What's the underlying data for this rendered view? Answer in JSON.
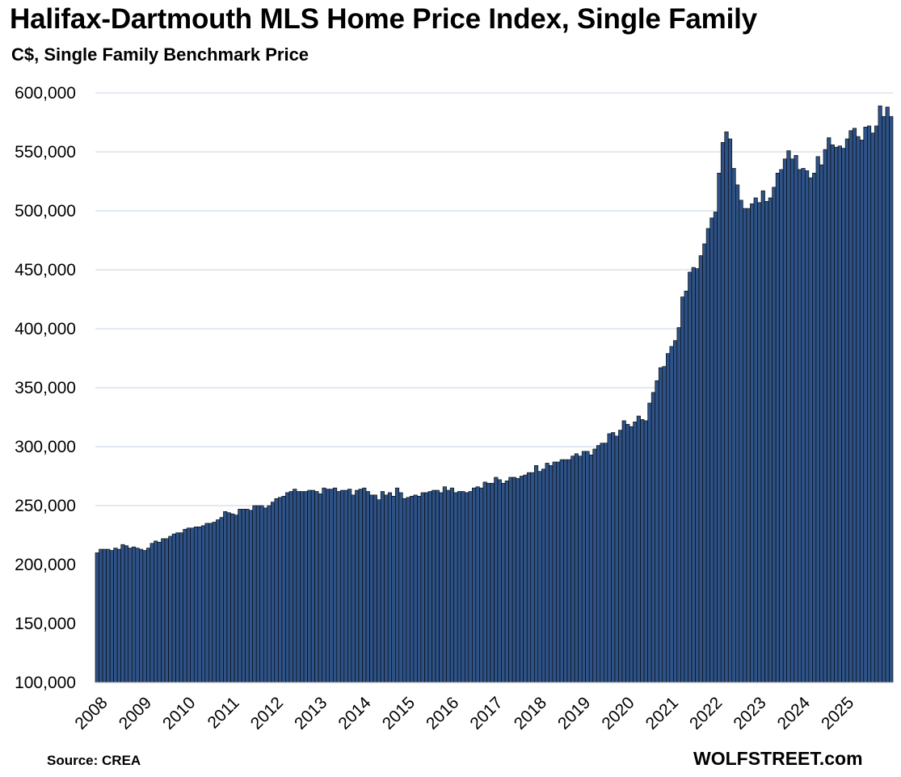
{
  "title": "Halifax-Dartmouth MLS Home Price Index, Single Family",
  "subtitle": "C$, Single Family Benchmark Price",
  "source": "Source: CREA",
  "watermark": "WOLFSTREET.com",
  "colors": {
    "bar_fill": "#2e5286",
    "bar_edge": "#000000",
    "grid": "#c5d3e2"
  },
  "chart_data": {
    "type": "bar",
    "title": "Halifax-Dartmouth MLS Home Price Index, Single Family",
    "subtitle": "C$, Single Family Benchmark Price",
    "xlabel": "",
    "ylabel": "",
    "ylim": [
      100000,
      600000
    ],
    "yticks": [
      100000,
      150000,
      200000,
      250000,
      300000,
      350000,
      400000,
      450000,
      500000,
      550000,
      600000
    ],
    "ytick_labels": [
      "100,000",
      "150,000",
      "200,000",
      "250,000",
      "300,000",
      "350,000",
      "400,000",
      "450,000",
      "500,000",
      "550,000",
      "600,000"
    ],
    "x_labels": [
      "2008",
      "2009",
      "2010",
      "2011",
      "2012",
      "2013",
      "2014",
      "2015",
      "2016",
      "2017",
      "2018",
      "2019",
      "2020",
      "2021",
      "2022",
      "2023",
      "2024",
      "2025"
    ],
    "grid": true,
    "legend": "none",
    "frequency": "monthly",
    "series": [
      {
        "values": [
          210000,
          213000,
          213000,
          213000,
          212000,
          214000,
          213000,
          217000,
          216000,
          214000,
          215000,
          214000,
          213000,
          212000,
          214000,
          218000,
          220000,
          219000,
          222000,
          222000,
          224000,
          226000,
          227000,
          227000,
          230000,
          231000,
          231000,
          232000,
          232000,
          233000,
          235000,
          235000,
          236000,
          238000,
          240000,
          245000,
          244000,
          243000,
          242000,
          247000,
          247000,
          247000,
          246000,
          250000,
          250000,
          250000,
          248000,
          250000,
          253000,
          256000,
          257000,
          258000,
          261000,
          262000,
          264000,
          262000,
          262000,
          262000,
          263000,
          263000,
          262000,
          260000,
          265000,
          264000,
          264000,
          265000,
          262000,
          263000,
          263000,
          264000,
          259000,
          263000,
          264000,
          265000,
          262000,
          259000,
          259000,
          255000,
          262000,
          259000,
          261000,
          258000,
          265000,
          261000,
          256000,
          257000,
          258000,
          259000,
          258000,
          261000,
          261000,
          262000,
          263000,
          263000,
          261000,
          266000,
          263000,
          265000,
          261000,
          262000,
          262000,
          261000,
          262000,
          265000,
          266000,
          265000,
          270000,
          269000,
          269000,
          274000,
          272000,
          269000,
          271000,
          274000,
          274000,
          273000,
          275000,
          276000,
          278000,
          278000,
          284000,
          279000,
          281000,
          286000,
          284000,
          287000,
          287000,
          289000,
          289000,
          289000,
          292000,
          294000,
          292000,
          296000,
          296000,
          293000,
          298000,
          301000,
          303000,
          303000,
          311000,
          312000,
          309000,
          314000,
          322000,
          319000,
          317000,
          321000,
          326000,
          323000,
          322000,
          337000,
          346000,
          356000,
          367000,
          368000,
          379000,
          385000,
          390000,
          401000,
          427000,
          432000,
          448000,
          452000,
          451000,
          462000,
          472000,
          485000,
          494000,
          499000,
          532000,
          558000,
          567000,
          561000,
          536000,
          522000,
          509000,
          502000,
          502000,
          506000,
          511000,
          507000,
          517000,
          508000,
          511000,
          520000,
          532000,
          535000,
          544000,
          551000,
          544000,
          547000,
          535000,
          536000,
          534000,
          528000,
          532000,
          546000,
          539000,
          552000,
          562000,
          556000,
          554000,
          555000,
          553000,
          561000,
          568000,
          570000,
          563000,
          560000,
          571000,
          572000,
          566000,
          572000,
          589000,
          580000,
          588000,
          580000
        ]
      }
    ]
  }
}
